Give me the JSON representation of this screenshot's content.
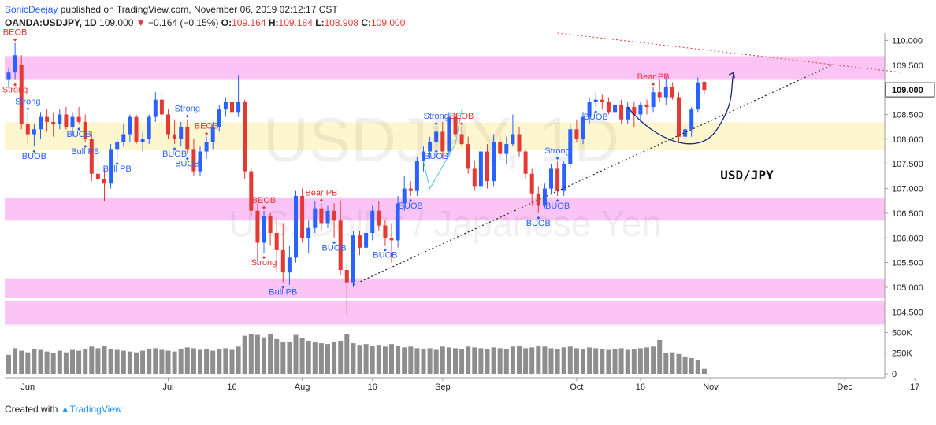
{
  "header": {
    "user": "SonicDeejay",
    "published_text": "published on TradingView.com, November 06, 2019 02:12:17 CST"
  },
  "symbol_bar": {
    "symbol": "OANDA:USDJPY, 1D",
    "last": "109.000",
    "down_arrow": "▼",
    "change": "−0.164 (−0.15%)",
    "o_label": "O:",
    "o": "109.164",
    "h_label": "H:",
    "h": "109.184",
    "l_label": "L:",
    "l": "108.908",
    "c_label": "C:",
    "c": "109.000"
  },
  "watermark": {
    "line1": "USDJPY, 1D",
    "line2": "U.S. Dollar / Japanese Yen"
  },
  "footer": {
    "created_with": "Created with",
    "brand": "TradingView"
  },
  "colors": {
    "up": "#2962ff",
    "down": "#e53935",
    "zone": "#fbc4f5",
    "zone_yellow": "#fdf6cf",
    "volume": "#8e8e8e",
    "trend_line": "#222222",
    "red_dotted": "#e53935"
  },
  "chart_data": {
    "type": "candlestick",
    "title": "USD/JPY",
    "x_tick_labels": [
      "Jun",
      "Jul",
      "16",
      "Aug",
      "16",
      "Sep",
      "Oct",
      "16",
      "Nov",
      "Dec",
      "17"
    ],
    "x_tick_bar_index": [
      3,
      25,
      35,
      46,
      57,
      68,
      89,
      99,
      110,
      131,
      142
    ],
    "y_ticks": [
      "110.000",
      "109.500",
      "109.000",
      "108.500",
      "108.000",
      "107.500",
      "107.000",
      "106.500",
      "106.000",
      "105.500",
      "105.000",
      "104.500"
    ],
    "y_range": [
      104.25,
      110.15
    ],
    "current_price_label": "109.000",
    "volume_ticks": [
      "500K",
      "250K",
      "0"
    ],
    "volume_range": [
      0,
      580
    ],
    "zones": [
      {
        "from": 109.2,
        "to": 109.68,
        "color": "pink"
      },
      {
        "from": 107.78,
        "to": 108.34,
        "color": "yellow"
      },
      {
        "from": 106.35,
        "to": 106.82,
        "color": "pink"
      },
      {
        "from": 104.78,
        "to": 105.18,
        "color": "pink"
      },
      {
        "from": 104.25,
        "to": 104.72,
        "color": "pink"
      }
    ],
    "candles": [
      {
        "o": 109.2,
        "h": 109.45,
        "l": 109.05,
        "c": 109.35
      },
      {
        "o": 109.35,
        "h": 109.95,
        "l": 109.2,
        "c": 109.7
      },
      {
        "o": 109.5,
        "h": 109.7,
        "l": 108.2,
        "c": 108.3
      },
      {
        "o": 108.3,
        "h": 108.55,
        "l": 107.9,
        "c": 108.1
      },
      {
        "o": 108.1,
        "h": 108.3,
        "l": 107.85,
        "c": 108.2
      },
      {
        "o": 108.2,
        "h": 108.55,
        "l": 108.0,
        "c": 108.45
      },
      {
        "o": 108.45,
        "h": 108.6,
        "l": 108.15,
        "c": 108.35
      },
      {
        "o": 108.35,
        "h": 108.55,
        "l": 108.05,
        "c": 108.3
      },
      {
        "o": 108.3,
        "h": 108.6,
        "l": 108.2,
        "c": 108.5
      },
      {
        "o": 108.5,
        "h": 108.65,
        "l": 108.2,
        "c": 108.25
      },
      {
        "o": 108.25,
        "h": 108.55,
        "l": 108.05,
        "c": 108.45
      },
      {
        "o": 108.45,
        "h": 108.65,
        "l": 108.3,
        "c": 108.35
      },
      {
        "o": 108.35,
        "h": 108.5,
        "l": 107.95,
        "c": 108.0
      },
      {
        "o": 108.0,
        "h": 108.15,
        "l": 107.15,
        "c": 107.3
      },
      {
        "o": 107.3,
        "h": 107.6,
        "l": 107.1,
        "c": 107.2
      },
      {
        "o": 107.2,
        "h": 107.4,
        "l": 106.75,
        "c": 107.1
      },
      {
        "o": 107.1,
        "h": 107.9,
        "l": 107.0,
        "c": 107.8
      },
      {
        "o": 107.8,
        "h": 108.0,
        "l": 107.6,
        "c": 107.95
      },
      {
        "o": 107.95,
        "h": 108.3,
        "l": 107.85,
        "c": 108.1
      },
      {
        "o": 108.1,
        "h": 108.5,
        "l": 107.95,
        "c": 108.45
      },
      {
        "o": 108.45,
        "h": 108.5,
        "l": 107.9,
        "c": 107.95
      },
      {
        "o": 107.95,
        "h": 108.15,
        "l": 107.75,
        "c": 108.0
      },
      {
        "o": 108.0,
        "h": 108.5,
        "l": 107.9,
        "c": 108.45
      },
      {
        "o": 108.45,
        "h": 108.95,
        "l": 108.35,
        "c": 108.8
      },
      {
        "o": 108.8,
        "h": 108.95,
        "l": 108.3,
        "c": 108.5
      },
      {
        "o": 108.5,
        "h": 108.6,
        "l": 108.0,
        "c": 108.1
      },
      {
        "o": 108.1,
        "h": 108.4,
        "l": 107.9,
        "c": 108.0
      },
      {
        "o": 108.0,
        "h": 108.35,
        "l": 107.85,
        "c": 108.25
      },
      {
        "o": 108.25,
        "h": 108.4,
        "l": 107.7,
        "c": 107.8
      },
      {
        "o": 107.8,
        "h": 108.0,
        "l": 107.25,
        "c": 107.35
      },
      {
        "o": 107.35,
        "h": 107.85,
        "l": 107.25,
        "c": 107.75
      },
      {
        "o": 107.75,
        "h": 108.05,
        "l": 107.6,
        "c": 107.95
      },
      {
        "o": 107.95,
        "h": 108.35,
        "l": 107.8,
        "c": 108.25
      },
      {
        "o": 108.25,
        "h": 108.7,
        "l": 108.15,
        "c": 108.6
      },
      {
        "o": 108.6,
        "h": 108.85,
        "l": 108.45,
        "c": 108.75
      },
      {
        "o": 108.75,
        "h": 108.85,
        "l": 108.5,
        "c": 108.55
      },
      {
        "o": 108.55,
        "h": 109.3,
        "l": 108.45,
        "c": 108.75
      },
      {
        "o": 108.75,
        "h": 108.8,
        "l": 107.2,
        "c": 107.35
      },
      {
        "o": 107.35,
        "h": 107.4,
        "l": 106.45,
        "c": 106.55
      },
      {
        "o": 106.55,
        "h": 106.7,
        "l": 105.45,
        "c": 105.9
      },
      {
        "o": 105.9,
        "h": 106.55,
        "l": 105.7,
        "c": 106.45
      },
      {
        "o": 106.45,
        "h": 106.5,
        "l": 105.85,
        "c": 106.1
      },
      {
        "o": 106.1,
        "h": 106.4,
        "l": 105.3,
        "c": 105.75
      },
      {
        "o": 105.75,
        "h": 106.3,
        "l": 105.1,
        "c": 105.3
      },
      {
        "o": 105.3,
        "h": 105.85,
        "l": 105.05,
        "c": 105.6
      },
      {
        "o": 105.6,
        "h": 106.95,
        "l": 105.5,
        "c": 106.85
      },
      {
        "o": 106.85,
        "h": 107.0,
        "l": 105.9,
        "c": 106.0
      },
      {
        "o": 106.0,
        "h": 106.35,
        "l": 105.7,
        "c": 106.2
      },
      {
        "o": 106.2,
        "h": 106.75,
        "l": 106.1,
        "c": 106.6
      },
      {
        "o": 106.6,
        "h": 106.7,
        "l": 106.15,
        "c": 106.3
      },
      {
        "o": 106.3,
        "h": 106.65,
        "l": 106.2,
        "c": 106.55
      },
      {
        "o": 106.55,
        "h": 106.7,
        "l": 106.0,
        "c": 106.35
      },
      {
        "o": 106.35,
        "h": 106.75,
        "l": 105.25,
        "c": 105.35
      },
      {
        "o": 105.35,
        "h": 105.45,
        "l": 104.45,
        "c": 105.1
      },
      {
        "o": 105.1,
        "h": 106.15,
        "l": 105.0,
        "c": 106.05
      },
      {
        "o": 106.05,
        "h": 106.15,
        "l": 105.65,
        "c": 105.8
      },
      {
        "o": 105.8,
        "h": 106.2,
        "l": 105.65,
        "c": 106.1
      },
      {
        "o": 106.1,
        "h": 106.65,
        "l": 105.95,
        "c": 106.55
      },
      {
        "o": 106.55,
        "h": 106.75,
        "l": 106.15,
        "c": 106.25
      },
      {
        "o": 106.25,
        "h": 106.35,
        "l": 105.85,
        "c": 106.0
      },
      {
        "o": 106.0,
        "h": 106.3,
        "l": 105.5,
        "c": 105.95
      },
      {
        "o": 105.95,
        "h": 106.85,
        "l": 105.8,
        "c": 106.7
      },
      {
        "o": 106.7,
        "h": 107.25,
        "l": 106.55,
        "c": 107.0
      },
      {
        "o": 107.0,
        "h": 107.15,
        "l": 106.85,
        "c": 106.95
      },
      {
        "o": 106.95,
        "h": 107.65,
        "l": 106.85,
        "c": 107.55
      },
      {
        "o": 107.55,
        "h": 107.85,
        "l": 107.35,
        "c": 107.75
      },
      {
        "o": 107.75,
        "h": 108.05,
        "l": 107.6,
        "c": 107.95
      },
      {
        "o": 107.95,
        "h": 108.25,
        "l": 107.85,
        "c": 108.15
      },
      {
        "o": 108.15,
        "h": 108.35,
        "l": 107.6,
        "c": 107.75
      },
      {
        "o": 107.75,
        "h": 108.55,
        "l": 107.65,
        "c": 108.45
      },
      {
        "o": 108.45,
        "h": 108.5,
        "l": 108.05,
        "c": 108.1
      },
      {
        "o": 108.1,
        "h": 108.25,
        "l": 107.85,
        "c": 107.9
      },
      {
        "o": 107.9,
        "h": 108.05,
        "l": 107.3,
        "c": 107.4
      },
      {
        "o": 107.4,
        "h": 107.55,
        "l": 106.95,
        "c": 107.05
      },
      {
        "o": 107.05,
        "h": 107.85,
        "l": 106.95,
        "c": 107.75
      },
      {
        "o": 107.75,
        "h": 107.9,
        "l": 107.0,
        "c": 107.15
      },
      {
        "o": 107.15,
        "h": 108.1,
        "l": 107.05,
        "c": 107.95
      },
      {
        "o": 107.95,
        "h": 108.1,
        "l": 107.55,
        "c": 107.7
      },
      {
        "o": 107.7,
        "h": 108.05,
        "l": 107.5,
        "c": 107.9
      },
      {
        "o": 107.9,
        "h": 108.5,
        "l": 107.85,
        "c": 108.1
      },
      {
        "o": 108.1,
        "h": 108.25,
        "l": 107.65,
        "c": 107.75
      },
      {
        "o": 107.75,
        "h": 107.8,
        "l": 107.2,
        "c": 107.3
      },
      {
        "o": 107.3,
        "h": 107.4,
        "l": 106.65,
        "c": 106.9
      },
      {
        "o": 106.9,
        "h": 107.05,
        "l": 106.5,
        "c": 106.65
      },
      {
        "o": 106.65,
        "h": 107.1,
        "l": 106.6,
        "c": 107.0
      },
      {
        "o": 107.0,
        "h": 107.5,
        "l": 106.9,
        "c": 107.4
      },
      {
        "o": 107.4,
        "h": 107.55,
        "l": 106.85,
        "c": 106.95
      },
      {
        "o": 106.95,
        "h": 107.55,
        "l": 106.85,
        "c": 107.5
      },
      {
        "o": 107.5,
        "h": 108.3,
        "l": 107.4,
        "c": 108.2
      },
      {
        "o": 108.2,
        "h": 108.4,
        "l": 107.95,
        "c": 108.0
      },
      {
        "o": 108.0,
        "h": 108.55,
        "l": 107.9,
        "c": 108.45
      },
      {
        "o": 108.45,
        "h": 108.85,
        "l": 108.3,
        "c": 108.75
      },
      {
        "o": 108.75,
        "h": 108.95,
        "l": 108.65,
        "c": 108.8
      },
      {
        "o": 108.8,
        "h": 108.9,
        "l": 108.6,
        "c": 108.75
      },
      {
        "o": 108.75,
        "h": 108.85,
        "l": 108.5,
        "c": 108.55
      },
      {
        "o": 108.55,
        "h": 108.75,
        "l": 108.4,
        "c": 108.7
      },
      {
        "o": 108.7,
        "h": 108.8,
        "l": 108.3,
        "c": 108.4
      },
      {
        "o": 108.4,
        "h": 108.75,
        "l": 108.3,
        "c": 108.65
      },
      {
        "o": 108.65,
        "h": 108.75,
        "l": 108.25,
        "c": 108.5
      },
      {
        "o": 108.5,
        "h": 108.75,
        "l": 108.35,
        "c": 108.7
      },
      {
        "o": 108.7,
        "h": 108.8,
        "l": 108.5,
        "c": 108.65
      },
      {
        "o": 108.65,
        "h": 109.05,
        "l": 108.55,
        "c": 108.95
      },
      {
        "o": 108.95,
        "h": 109.2,
        "l": 108.75,
        "c": 108.85
      },
      {
        "o": 108.85,
        "h": 109.3,
        "l": 108.7,
        "c": 109.05
      },
      {
        "o": 109.05,
        "h": 109.15,
        "l": 108.8,
        "c": 108.85
      },
      {
        "o": 108.85,
        "h": 108.95,
        "l": 107.95,
        "c": 108.05
      },
      {
        "o": 108.05,
        "h": 108.3,
        "l": 107.95,
        "c": 108.2
      },
      {
        "o": 108.2,
        "h": 108.65,
        "l": 108.05,
        "c": 108.6
      },
      {
        "o": 108.6,
        "h": 109.25,
        "l": 108.55,
        "c": 109.15
      },
      {
        "o": 109.16,
        "h": 109.18,
        "l": 108.91,
        "c": 109.0
      }
    ],
    "volume": [
      230,
      310,
      280,
      260,
      300,
      290,
      270,
      250,
      280,
      260,
      290,
      280,
      300,
      330,
      310,
      340,
      300,
      290,
      280,
      270,
      260,
      280,
      300,
      310,
      290,
      280,
      270,
      300,
      320,
      310,
      290,
      300,
      280,
      300,
      310,
      290,
      330,
      460,
      480,
      470,
      440,
      480,
      420,
      380,
      390,
      470,
      430,
      400,
      380,
      370,
      360,
      390,
      400,
      480,
      370,
      350,
      360,
      340,
      350,
      330,
      360,
      340,
      320,
      330,
      310,
      300,
      310,
      290,
      330,
      320,
      310,
      300,
      330,
      320,
      310,
      300,
      320,
      310,
      300,
      330,
      340,
      310,
      320,
      340,
      330,
      310,
      300,
      320,
      330,
      310,
      300,
      320,
      310,
      300,
      290,
      300,
      310,
      290,
      300,
      310,
      320,
      330,
      410,
      250,
      260,
      240,
      210,
      190,
      170,
      60
    ],
    "annotations": [
      {
        "text": "BEOB",
        "i": 1,
        "side": "above",
        "color": "red"
      },
      {
        "text": "Strong",
        "i": 3,
        "side": "above",
        "color": "blue"
      },
      {
        "text": "Strong",
        "i": 1,
        "side": "below",
        "color": "red"
      },
      {
        "text": "BUOB",
        "i": 4,
        "side": "below",
        "color": "blue"
      },
      {
        "text": "BUOB",
        "i": 11,
        "side": "below",
        "color": "blue"
      },
      {
        "text": "Bull PB",
        "i": 12,
        "side": "below",
        "color": "blue"
      },
      {
        "text": "Bull PB",
        "i": 17,
        "side": "below",
        "color": "blue"
      },
      {
        "text": "Strong",
        "i": 28,
        "side": "above",
        "color": "blue"
      },
      {
        "text": "BEOB",
        "i": 31,
        "side": "above",
        "color": "red"
      },
      {
        "text": "BUOB",
        "i": 26,
        "side": "below",
        "color": "blue"
      },
      {
        "text": "BUOB",
        "i": 28,
        "side": "below",
        "color": "blue"
      },
      {
        "text": "BEOB",
        "i": 40,
        "side": "above",
        "color": "red"
      },
      {
        "text": "Strong",
        "i": 40,
        "side": "below",
        "color": "red"
      },
      {
        "text": "Bear PB",
        "i": 49,
        "side": "above",
        "color": "red"
      },
      {
        "text": "Bull PB",
        "i": 43,
        "side": "below",
        "color": "blue"
      },
      {
        "text": "BUOB",
        "i": 51,
        "side": "below",
        "color": "blue"
      },
      {
        "text": "BUOB",
        "i": 59,
        "side": "below",
        "color": "blue"
      },
      {
        "text": "BUOB",
        "i": 63,
        "side": "below",
        "color": "blue"
      },
      {
        "text": "Strong",
        "i": 67,
        "side": "above",
        "color": "blue"
      },
      {
        "text": "BEOB",
        "i": 71,
        "side": "above",
        "color": "red"
      },
      {
        "text": "BUOB",
        "i": 67,
        "side": "below",
        "color": "blue"
      },
      {
        "text": "BUOB",
        "i": 83,
        "side": "below",
        "color": "blue"
      },
      {
        "text": "Strong",
        "i": 86,
        "side": "above",
        "color": "blue"
      },
      {
        "text": "BUOB",
        "i": 86,
        "side": "below",
        "color": "blue"
      },
      {
        "text": "BUOB",
        "i": 92,
        "side": "below",
        "color": "blue"
      },
      {
        "text": "Bear PB",
        "i": 101,
        "side": "above",
        "color": "red"
      }
    ],
    "trendline": {
      "from": [
        54,
        105.05
      ],
      "to": [
        129,
        109.5
      ]
    },
    "red_dotted_line": {
      "from": [
        86,
        110.15
      ],
      "to": [
        140,
        109.35
      ]
    }
  }
}
